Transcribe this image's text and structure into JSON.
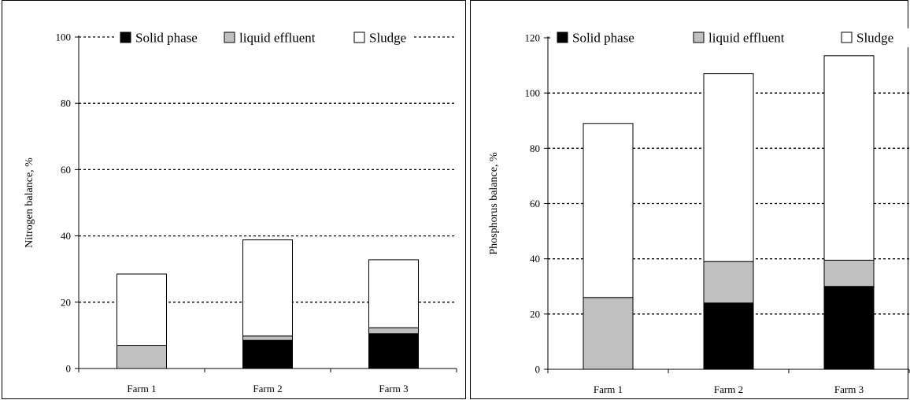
{
  "chart_data": [
    {
      "type": "bar",
      "stacked": true,
      "categories": [
        "Farm 1",
        "Farm 2",
        "Farm 3"
      ],
      "series": [
        {
          "name": "Solid phase",
          "color": "#000000",
          "values": [
            0,
            8.5,
            10.5
          ]
        },
        {
          "name": "liquid effluent",
          "color": "#c0c0c0",
          "values": [
            7,
            1.3,
            1.8
          ]
        },
        {
          "name": "Sludge",
          "color": "#ffffff",
          "values": [
            21.5,
            29,
            20.5
          ]
        }
      ],
      "ylabel": "Nitrogen balance, %",
      "ylim": [
        0,
        100
      ],
      "yticks": [
        0,
        20,
        40,
        60,
        80,
        100
      ],
      "grid": true,
      "legend": "top"
    },
    {
      "type": "bar",
      "stacked": true,
      "categories": [
        "Farm 1",
        "Farm 2",
        "Farm 3"
      ],
      "series": [
        {
          "name": "Solid phase",
          "color": "#000000",
          "values": [
            0,
            24,
            30
          ]
        },
        {
          "name": "liquid effluent",
          "color": "#c0c0c0",
          "values": [
            26,
            15,
            9.5
          ]
        },
        {
          "name": "Sludge",
          "color": "#ffffff",
          "values": [
            63,
            68,
            74
          ]
        }
      ],
      "ylabel": "Phosphorus balance, %",
      "ylim": [
        0,
        120
      ],
      "yticks": [
        0,
        20,
        40,
        60,
        80,
        100,
        120
      ],
      "grid": true,
      "legend": "top"
    }
  ]
}
